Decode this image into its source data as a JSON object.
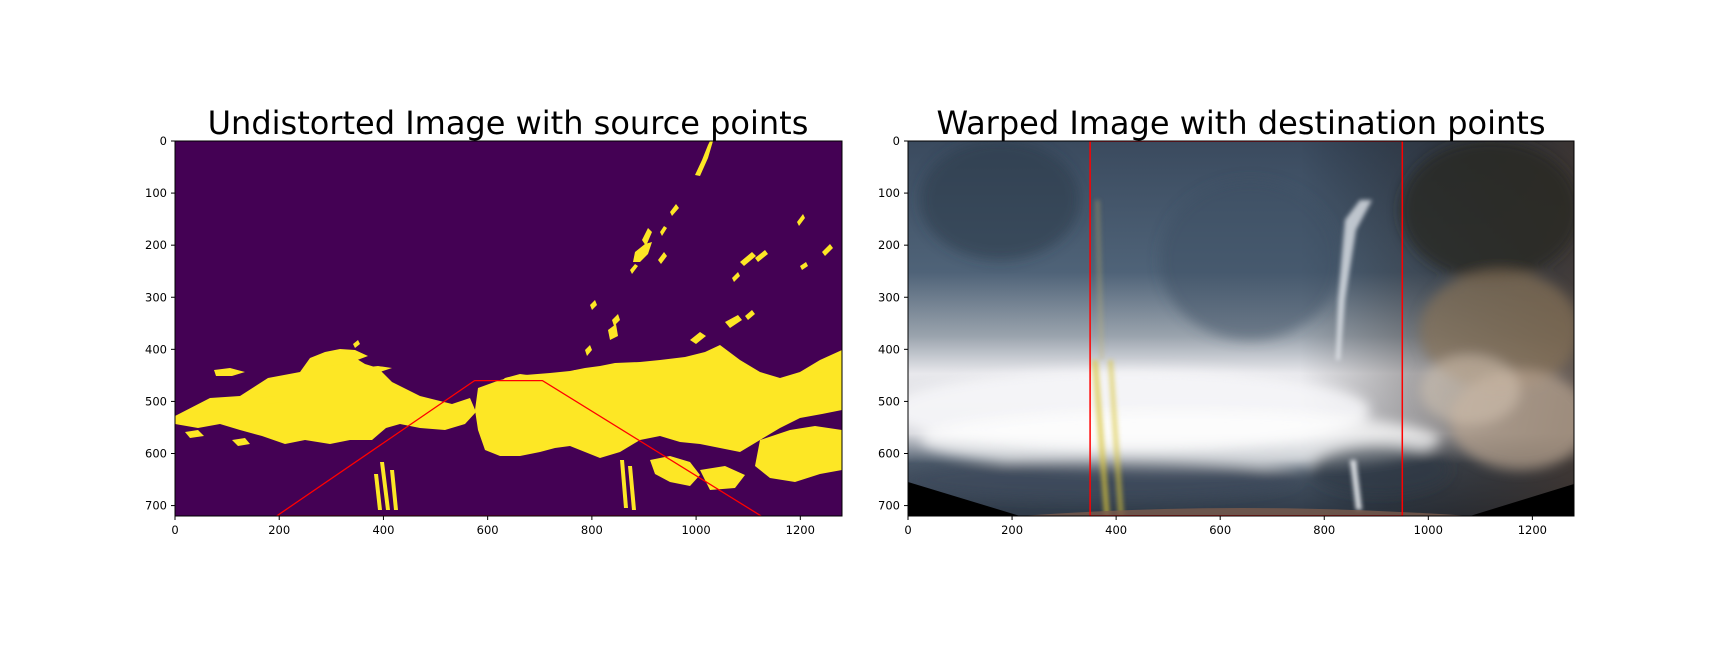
{
  "chart_data": [
    {
      "type": "image",
      "title": "Undistorted Image with source points",
      "xlim": [
        0,
        1280
      ],
      "ylim": [
        720,
        0
      ],
      "xticks": [
        0,
        200,
        400,
        600,
        800,
        1000,
        1200
      ],
      "yticks": [
        0,
        100,
        200,
        300,
        400,
        500,
        600,
        700
      ],
      "background_color": "#440154",
      "foreground_color": "#fde725",
      "overlay_color": "#ff0000",
      "overlay_polygon": {
        "x": [
          195,
          575,
          705,
          1125,
          195
        ],
        "y": [
          720,
          460,
          460,
          720,
          720
        ]
      }
    },
    {
      "type": "image",
      "title": "Warped Image with destination points",
      "xlim": [
        0,
        1280
      ],
      "ylim": [
        720,
        0
      ],
      "xticks": [
        0,
        200,
        400,
        600,
        800,
        1000,
        1200
      ],
      "yticks": [
        0,
        100,
        200,
        300,
        400,
        500,
        600,
        700
      ],
      "overlay_color": "#ff0000",
      "overlay_polygon": {
        "x": [
          350,
          350,
          950,
          950,
          350
        ],
        "y": [
          720,
          0,
          0,
          720,
          720
        ]
      }
    }
  ]
}
